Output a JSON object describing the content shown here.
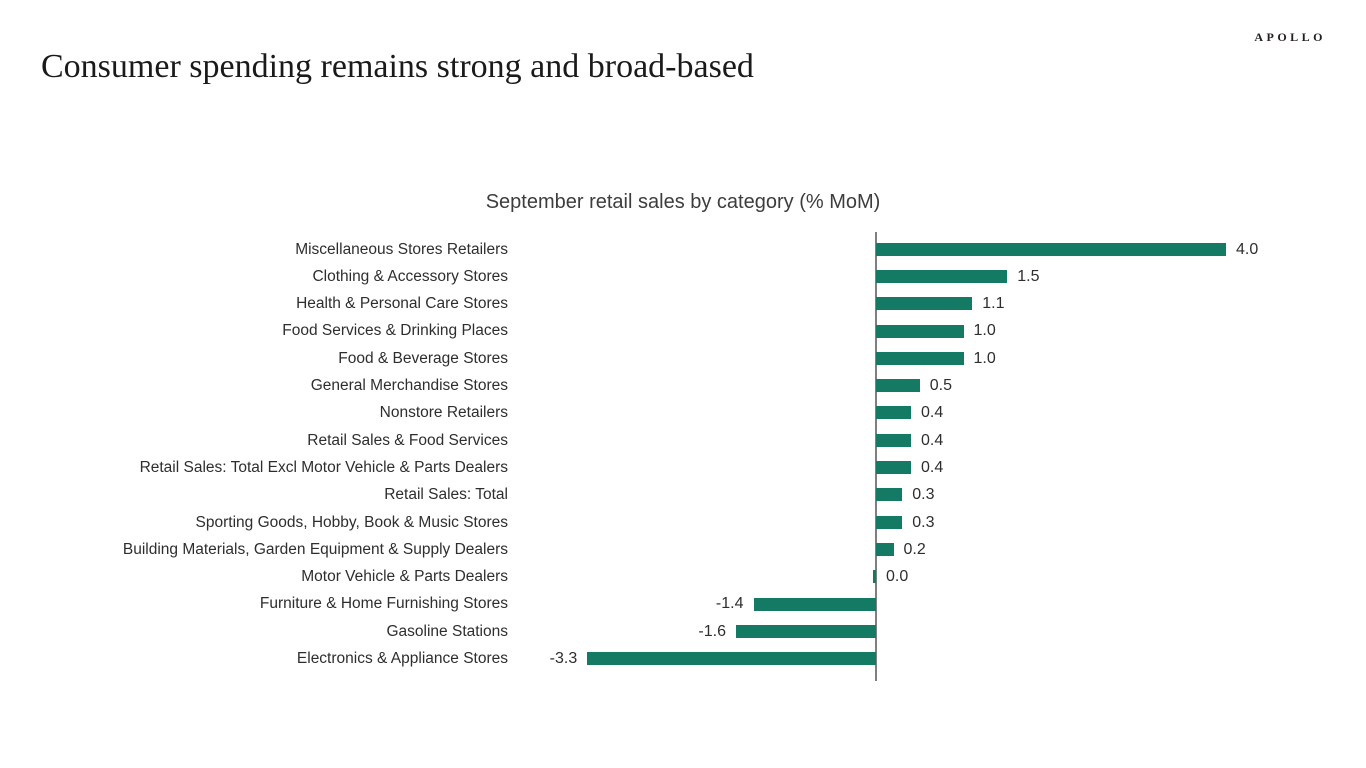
{
  "header": {
    "logo": "APOLLO",
    "title": "Consumer spending remains strong and broad-based"
  },
  "chart_data": {
    "type": "bar",
    "orientation": "horizontal",
    "title": "September retail sales by category (% MoM)",
    "categories": [
      "Miscellaneous Stores Retailers",
      "Clothing & Accessory Stores",
      "Health & Personal Care Stores",
      "Food Services & Drinking Places",
      "Food & Beverage Stores",
      "General Merchandise Stores",
      "Nonstore Retailers",
      "Retail Sales & Food Services",
      "Retail Sales: Total Excl Motor Vehicle & Parts Dealers",
      "Retail Sales: Total",
      "Sporting Goods, Hobby, Book & Music Stores",
      "Building Materials, Garden Equipment & Supply Dealers",
      "Motor Vehicle & Parts Dealers",
      "Furniture & Home Furnishing Stores",
      "Gasoline Stations",
      "Electronics & Appliance Stores"
    ],
    "values": [
      4.0,
      1.5,
      1.1,
      1.0,
      1.0,
      0.5,
      0.4,
      0.4,
      0.4,
      0.3,
      0.3,
      0.2,
      0.0,
      -1.4,
      -1.6,
      -3.3
    ],
    "value_labels": [
      "4.0",
      "1.5",
      "1.1",
      "1.0",
      "1.0",
      "0.5",
      "0.4",
      "0.4",
      "0.4",
      "0.3",
      "0.3",
      "0.2",
      "0.0",
      "-1.4",
      "-1.6",
      "-3.3"
    ],
    "xlim": [
      -4.5,
      4.5
    ],
    "grid": false,
    "legend": "none",
    "bar_color": "#147a63",
    "axis_color": "#7f7f7f",
    "label_color": "#2e2e2e"
  }
}
